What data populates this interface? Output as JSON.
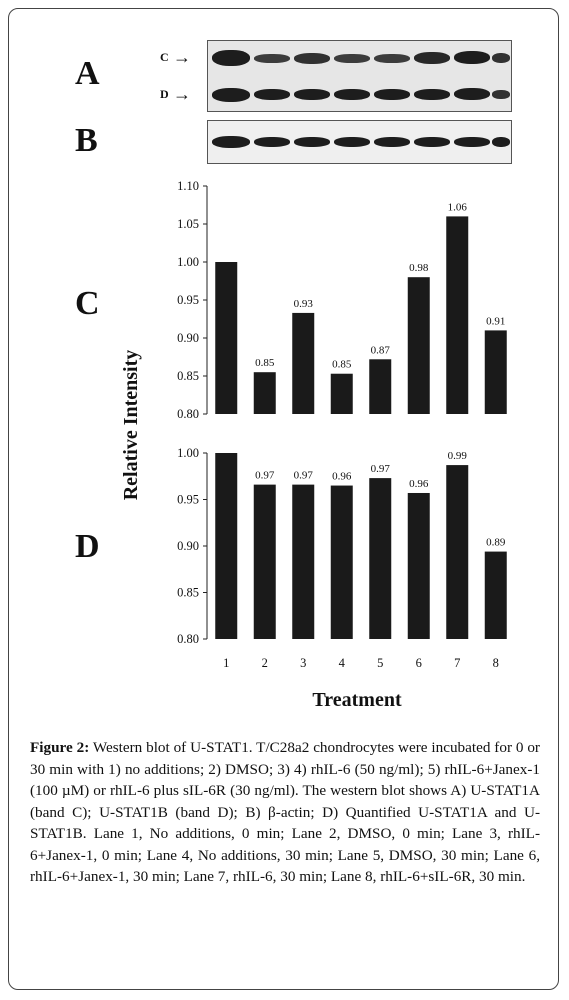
{
  "panels": {
    "a_label": "A",
    "b_label": "B",
    "c_label": "C",
    "d_label": "D"
  },
  "blot": {
    "band_c_label": "C",
    "band_d_label": "D",
    "arrow": "→"
  },
  "chart_data": [
    {
      "type": "bar",
      "panel": "C",
      "categories": [
        "1",
        "2",
        "3",
        "4",
        "5",
        "6",
        "7",
        "8"
      ],
      "values": [
        1.0,
        0.855,
        0.933,
        0.853,
        0.872,
        0.98,
        1.06,
        0.91
      ],
      "data_labels": [
        "",
        "0.85",
        "0.93",
        "0.85",
        "0.87",
        "0.98",
        "1.06",
        "0.91"
      ],
      "ylim": [
        0.8,
        1.1
      ],
      "yticks": [
        "0.80",
        "0.85",
        "0.90",
        "0.95",
        "1.00",
        "1.05",
        "1.10"
      ],
      "bar_color": "#1a1a1a"
    },
    {
      "type": "bar",
      "panel": "D",
      "categories": [
        "1",
        "2",
        "3",
        "4",
        "5",
        "6",
        "7",
        "8"
      ],
      "values": [
        1.0,
        0.966,
        0.966,
        0.965,
        0.973,
        0.957,
        0.987,
        0.894
      ],
      "data_labels": [
        "",
        "0.97",
        "0.97",
        "0.96",
        "0.97",
        "0.96",
        "0.99",
        "0.89"
      ],
      "ylim": [
        0.8,
        1.0
      ],
      "yticks": [
        "0.80",
        "0.85",
        "0.90",
        "0.95",
        "1.00"
      ],
      "bar_color": "#1a1a1a"
    }
  ],
  "axes": {
    "ylabel": "Relative Intensity",
    "xlabel": "Treatment",
    "xticks": [
      "1",
      "2",
      "3",
      "4",
      "5",
      "6",
      "7",
      "8"
    ]
  },
  "caption": {
    "label": "Figure 2:",
    "text": " Western blot of U-STAT1. T/C28a2 chondrocytes were incubated for 0 or 30 min with 1) no additions; 2) DMSO; 3) 4) rhIL-6 (50 ng/ml); 5) rhIL-6+Janex-1 (100 µM) or rhIL-6 plus sIL-6R (30 ng/ml). The western blot shows A) U-STAT1A (band C); U-STAT1B (band D); B) β-actin; D) Quantified U-STAT1A and U-STAT1B. Lane 1, No additions, 0 min; Lane 2, DMSO, 0 min; Lane 3, rhIL-6+Janex-1, 0 min; Lane 4, No additions, 30 min; Lane 5, DMSO, 30 min; Lane 6, rhIL-6+Janex-1, 30 min; Lane 7, rhIL-6, 30 min; Lane 8, rhIL-6+sIL-6R, 30 min."
  }
}
